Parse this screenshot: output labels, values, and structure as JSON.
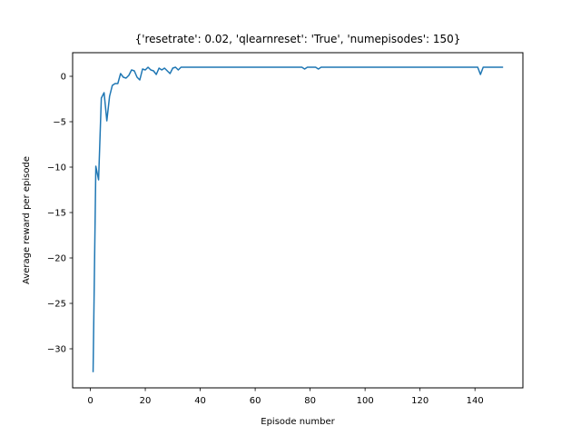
{
  "chart_data": {
    "type": "line",
    "title": "{'resetrate': 0.02, 'qlearnreset': 'True', 'numepisodes': 150}",
    "xlabel": "Episode number",
    "ylabel": "Average reward per episode",
    "xlim": [
      -6.45,
      157.45
    ],
    "ylim": [
      -34.3,
      2.6
    ],
    "xticks": [
      0,
      20,
      40,
      60,
      80,
      100,
      120,
      140
    ],
    "xtick_labels": [
      "0",
      "20",
      "40",
      "60",
      "80",
      "100",
      "120",
      "140"
    ],
    "yticks": [
      0,
      -5,
      -10,
      -15,
      -20,
      -25,
      -30
    ],
    "ytick_labels": [
      "0",
      "−5",
      "−10",
      "−15",
      "−20",
      "−25",
      "−30"
    ],
    "grid": false,
    "line_color": "#1f77b4",
    "series": [
      {
        "x": [
          1,
          2,
          3,
          4,
          5,
          6,
          7,
          8,
          9,
          10,
          11,
          12,
          13,
          14,
          15,
          16,
          17,
          18,
          19,
          20,
          21,
          22,
          23,
          24,
          25,
          26,
          27,
          28,
          29,
          30,
          31,
          32,
          33,
          34,
          35,
          36,
          37,
          38,
          39,
          40,
          41,
          42,
          43,
          44,
          45,
          46,
          47,
          48,
          49,
          50,
          51,
          52,
          53,
          54,
          55,
          56,
          57,
          58,
          59,
          60,
          61,
          62,
          63,
          64,
          65,
          66,
          67,
          68,
          69,
          70,
          71,
          72,
          73,
          74,
          75,
          76,
          77,
          78,
          79,
          80,
          81,
          82,
          83,
          84,
          85,
          86,
          87,
          88,
          89,
          90,
          91,
          92,
          93,
          94,
          95,
          96,
          97,
          98,
          99,
          100,
          101,
          102,
          103,
          104,
          105,
          106,
          107,
          108,
          109,
          110,
          111,
          112,
          113,
          114,
          115,
          116,
          117,
          118,
          119,
          120,
          121,
          122,
          123,
          124,
          125,
          126,
          127,
          128,
          129,
          130,
          131,
          132,
          133,
          134,
          135,
          136,
          137,
          138,
          139,
          140,
          141,
          142,
          143,
          144,
          145,
          146,
          147,
          148,
          149,
          150
        ],
        "y": [
          -32.5,
          -9.9,
          -11.4,
          -2.4,
          -1.8,
          -4.9,
          -2.2,
          -1.0,
          -0.8,
          -0.8,
          0.3,
          -0.1,
          -0.2,
          0.1,
          0.7,
          0.6,
          -0.1,
          -0.4,
          0.8,
          0.7,
          1.0,
          0.7,
          0.6,
          0.2,
          0.9,
          0.7,
          0.9,
          0.6,
          0.3,
          0.9,
          1.0,
          0.7,
          1.0,
          1.0,
          1.0,
          1.0,
          1.0,
          1.0,
          1.0,
          1.0,
          1.0,
          1.0,
          1.0,
          1.0,
          1.0,
          1.0,
          1.0,
          1.0,
          1.0,
          1.0,
          1.0,
          1.0,
          1.0,
          1.0,
          1.0,
          1.0,
          1.0,
          1.0,
          1.0,
          1.0,
          1.0,
          1.0,
          1.0,
          1.0,
          1.0,
          1.0,
          1.0,
          1.0,
          1.0,
          1.0,
          1.0,
          1.0,
          1.0,
          1.0,
          1.0,
          1.0,
          1.0,
          0.8,
          1.0,
          1.0,
          1.0,
          1.0,
          0.8,
          1.0,
          1.0,
          1.0,
          1.0,
          1.0,
          1.0,
          1.0,
          1.0,
          1.0,
          1.0,
          1.0,
          1.0,
          1.0,
          1.0,
          1.0,
          1.0,
          1.0,
          1.0,
          1.0,
          1.0,
          1.0,
          1.0,
          1.0,
          1.0,
          1.0,
          1.0,
          1.0,
          1.0,
          1.0,
          1.0,
          1.0,
          1.0,
          1.0,
          1.0,
          1.0,
          1.0,
          1.0,
          1.0,
          1.0,
          1.0,
          1.0,
          1.0,
          1.0,
          1.0,
          1.0,
          1.0,
          1.0,
          1.0,
          1.0,
          1.0,
          1.0,
          1.0,
          1.0,
          1.0,
          1.0,
          1.0,
          1.0,
          1.0,
          0.2,
          1.0,
          1.0,
          1.0,
          1.0,
          1.0,
          1.0,
          1.0,
          1.0
        ]
      }
    ]
  }
}
